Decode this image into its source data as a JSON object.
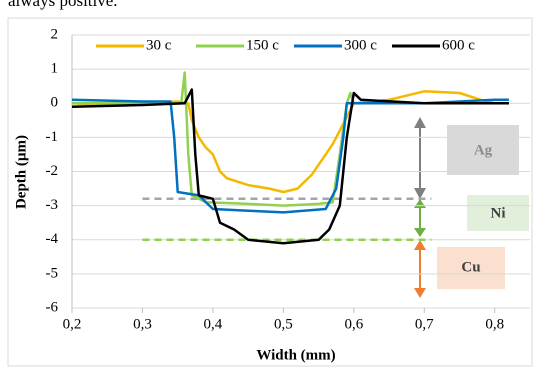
{
  "page_text": "always positive.",
  "chart_data": {
    "type": "line",
    "xlabel": "Width (mm)",
    "ylabel": "Depth (µm)",
    "xlim": [
      0.2,
      0.85
    ],
    "ylim": [
      -6,
      2
    ],
    "xticks": [
      {
        "value": 0.2,
        "label": "0,2"
      },
      {
        "value": 0.3,
        "label": "0,3"
      },
      {
        "value": 0.4,
        "label": "0,4"
      },
      {
        "value": 0.5,
        "label": "0,5"
      },
      {
        "value": 0.6,
        "label": "0,6"
      },
      {
        "value": 0.7,
        "label": "0,7"
      },
      {
        "value": 0.8,
        "label": "0,8"
      }
    ],
    "yticks": [
      -6,
      -5,
      -4,
      -3,
      -2,
      -1,
      0,
      1,
      2
    ],
    "grid": true,
    "legend": "top",
    "series": [
      {
        "name": "30 c",
        "color": "#f5b800",
        "x": [
          0.2,
          0.25,
          0.3,
          0.35,
          0.365,
          0.37,
          0.38,
          0.39,
          0.4,
          0.41,
          0.42,
          0.45,
          0.48,
          0.5,
          0.52,
          0.54,
          0.56,
          0.57,
          0.58,
          0.59,
          0.6,
          0.65,
          0.7,
          0.75,
          0.78,
          0.8,
          0.82
        ],
        "values": [
          0,
          -0.05,
          0,
          0.05,
          0,
          -0.5,
          -1,
          -1.3,
          -1.5,
          -2,
          -2.2,
          -2.4,
          -2.5,
          -2.6,
          -2.5,
          -2.1,
          -1.5,
          -1.2,
          -0.8,
          -0.4,
          0,
          0.1,
          0.35,
          0.3,
          0.1,
          0,
          0
        ]
      },
      {
        "name": "150 c",
        "color": "#92d050",
        "x": [
          0.2,
          0.3,
          0.355,
          0.36,
          0.365,
          0.37,
          0.39,
          0.45,
          0.5,
          0.55,
          0.57,
          0.58,
          0.59,
          0.595,
          0.6,
          0.7,
          0.8,
          0.82
        ],
        "values": [
          0,
          0,
          0,
          0.9,
          -1.5,
          -2.7,
          -2.9,
          -2.95,
          -3.0,
          -2.95,
          -2.9,
          -1.5,
          0,
          0.3,
          0,
          0,
          0,
          0
        ]
      },
      {
        "name": "300 c",
        "color": "#0070c0",
        "x": [
          0.2,
          0.3,
          0.34,
          0.345,
          0.35,
          0.38,
          0.4,
          0.45,
          0.5,
          0.56,
          0.575,
          0.585,
          0.59,
          0.7,
          0.8,
          0.82
        ],
        "values": [
          0.1,
          0.05,
          0.05,
          -1,
          -2.6,
          -2.7,
          -3.1,
          -3.15,
          -3.2,
          -3.1,
          -2.5,
          -1,
          0,
          0,
          0.1,
          0.1
        ]
      },
      {
        "name": "600 c",
        "color": "#000000",
        "x": [
          0.2,
          0.3,
          0.36,
          0.37,
          0.375,
          0.38,
          0.4,
          0.41,
          0.43,
          0.45,
          0.5,
          0.55,
          0.565,
          0.58,
          0.59,
          0.6,
          0.61,
          0.7,
          0.8,
          0.82
        ],
        "values": [
          -0.1,
          -0.05,
          0,
          0.4,
          -1.5,
          -2.7,
          -2.8,
          -3.5,
          -3.7,
          -4.0,
          -4.1,
          -4.0,
          -3.7,
          -3.0,
          -1,
          0.3,
          0.1,
          0,
          0,
          0
        ]
      }
    ],
    "boundaries": [
      {
        "value": -2.8,
        "color": "#a6a6a6"
      },
      {
        "value": -4,
        "color": "#92d050"
      }
    ],
    "annotations": [
      "Ag",
      "Ni",
      "Cu"
    ]
  }
}
